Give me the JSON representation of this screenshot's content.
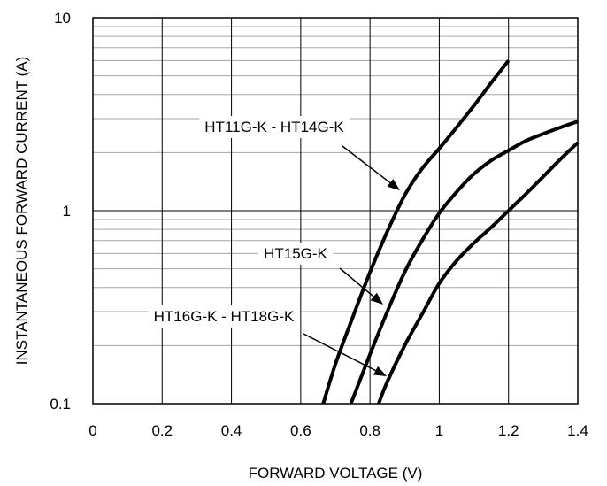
{
  "chart_data": {
    "type": "line",
    "title": "",
    "xlabel": "FORWARD VOLTAGE (V)",
    "ylabel": "INSTANTANEOUS FORWARD CURRENT (A)",
    "xlim": [
      0,
      1.4
    ],
    "ylim": [
      0.1,
      10
    ],
    "y_scale": "log",
    "grid": true,
    "x_ticks": [
      "0",
      "0.2",
      "0.4",
      "0.6",
      "0.8",
      "1",
      "1.2",
      "1.4"
    ],
    "y_ticks": [
      "0.1",
      "1",
      "10"
    ],
    "series": [
      {
        "name": "HT11G-K - HT14G-K",
        "x": [
          0.665,
          0.7,
          0.75,
          0.8,
          0.85,
          0.9,
          0.95,
          1.0,
          1.05,
          1.1,
          1.15,
          1.2
        ],
        "y": [
          0.1,
          0.16,
          0.28,
          0.48,
          0.78,
          1.2,
          1.65,
          2.1,
          2.7,
          3.5,
          4.6,
          6.0
        ]
      },
      {
        "name": "HT15G-K",
        "x": [
          0.745,
          0.8,
          0.85,
          0.9,
          0.95,
          1.0,
          1.05,
          1.1,
          1.15,
          1.2,
          1.25,
          1.3,
          1.35,
          1.4
        ],
        "y": [
          0.1,
          0.18,
          0.3,
          0.48,
          0.7,
          0.97,
          1.25,
          1.55,
          1.82,
          2.05,
          2.3,
          2.5,
          2.7,
          2.9
        ]
      },
      {
        "name": "HT16G-K - HT18G-K",
        "x": [
          0.825,
          0.85,
          0.9,
          0.95,
          1.0,
          1.05,
          1.1,
          1.15,
          1.2,
          1.25,
          1.3,
          1.35,
          1.4
        ],
        "y": [
          0.1,
          0.13,
          0.2,
          0.29,
          0.42,
          0.55,
          0.68,
          0.82,
          1.0,
          1.22,
          1.5,
          1.85,
          2.25
        ]
      }
    ],
    "annotations": [
      {
        "text": "HT11G-K - HT14G-K",
        "series": "HT11G-K - HT14G-K"
      },
      {
        "text": "HT15G-K",
        "series": "HT15G-K"
      },
      {
        "text": "HT16G-K - HT18G-K",
        "series": "HT16G-K - HT18G-K"
      }
    ]
  }
}
